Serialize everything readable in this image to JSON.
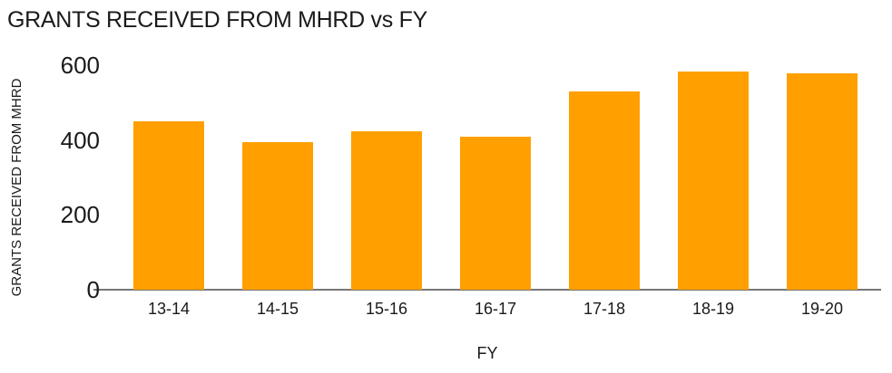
{
  "chart_data": {
    "type": "bar",
    "title": "GRANTS RECEIVED FROM MHRD vs FY",
    "xlabel": "FY",
    "ylabel": "GRANTS RECEIVED FROM MHRD",
    "categories": [
      "13-14",
      "14-15",
      "15-16",
      "16-17",
      "17-18",
      "18-19",
      "19-20"
    ],
    "values": [
      450,
      395,
      425,
      410,
      530,
      585,
      580
    ],
    "ylim": [
      0,
      600
    ],
    "yticks": [
      0,
      200,
      400,
      600
    ],
    "grid": "off",
    "legend_position": "none",
    "bar_color": "#FFA000",
    "axis_color": "#777777",
    "text_color": "#1a1a1a",
    "background_color": "#ffffff"
  }
}
